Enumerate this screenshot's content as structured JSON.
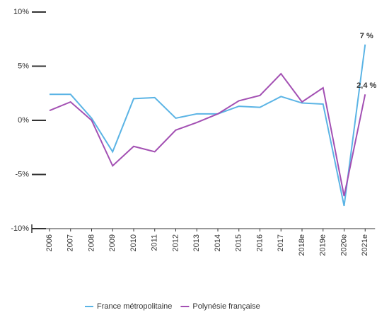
{
  "chart_data": {
    "type": "line",
    "categories": [
      "2006",
      "2007",
      "2008",
      "2009",
      "2010",
      "2011",
      "2012",
      "2013",
      "2014",
      "2015",
      "2016",
      "2017",
      "2018e",
      "2019e",
      "2020e",
      "2021e"
    ],
    "series": [
      {
        "name": "France métropolitaine",
        "color": "#5bb4e5",
        "values": [
          2.4,
          2.4,
          0.2,
          -2.9,
          2.0,
          2.1,
          0.2,
          0.6,
          0.6,
          1.3,
          1.2,
          2.2,
          1.6,
          1.5,
          -7.9,
          7.0
        ],
        "value_labels": [
          null,
          null,
          null,
          null,
          null,
          null,
          null,
          null,
          null,
          null,
          null,
          null,
          null,
          null,
          null,
          "7 %"
        ]
      },
      {
        "name": "Polynésie française",
        "color": "#a350b3",
        "values": [
          0.9,
          1.7,
          0.0,
          -4.2,
          -2.4,
          -2.9,
          -0.9,
          -0.2,
          0.6,
          1.8,
          2.3,
          4.3,
          1.7,
          3.0,
          -7.0,
          2.4
        ],
        "value_labels": [
          null,
          null,
          null,
          null,
          null,
          null,
          null,
          null,
          null,
          null,
          null,
          null,
          null,
          null,
          null,
          "2,4 %"
        ]
      }
    ],
    "ylim": [
      -10,
      10
    ],
    "yticks": [
      {
        "value": 10,
        "label": "10%"
      },
      {
        "value": 5,
        "label": "5%"
      },
      {
        "value": 0,
        "label": "0%"
      },
      {
        "value": -5,
        "label": "-5%"
      },
      {
        "value": -10,
        "label": "-10%"
      }
    ],
    "grid": false,
    "legend": "bottom"
  }
}
